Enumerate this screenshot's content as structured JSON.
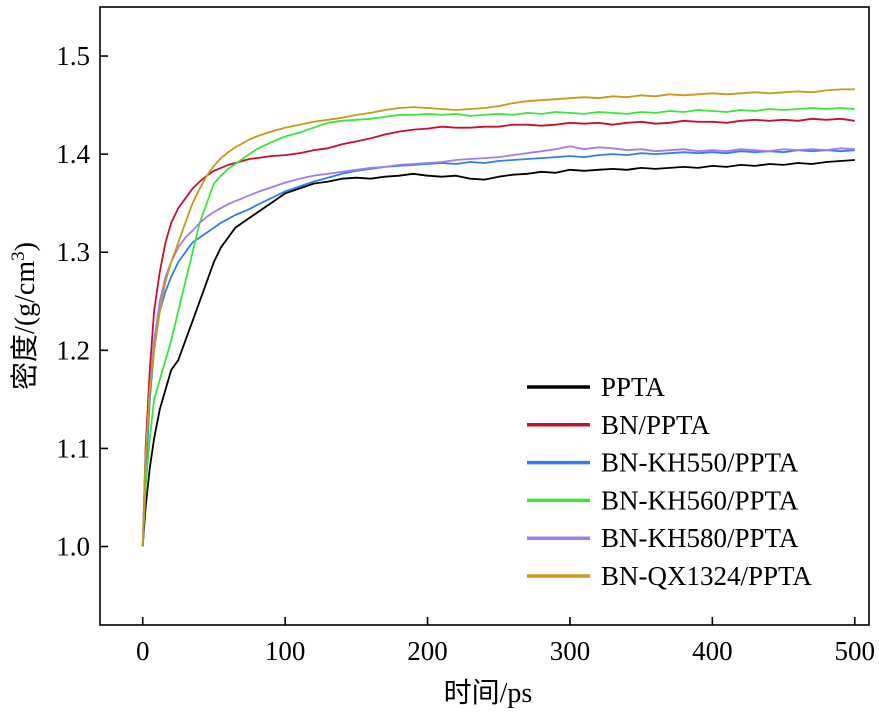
{
  "chart_data": {
    "type": "line",
    "xlabel": "时间/ps",
    "ylabel": "密度/(g/cm",
    "ylabel_superscript": "3",
    "ylabel_close": ")",
    "xlim": [
      -30,
      510
    ],
    "ylim": [
      0.92,
      1.55
    ],
    "xticks": [
      0,
      100,
      200,
      300,
      400,
      500
    ],
    "yticks": [
      1.0,
      1.1,
      1.2,
      1.3,
      1.4,
      1.5
    ],
    "ytick_labels": [
      "1.0",
      "1.1",
      "1.2",
      "1.3",
      "1.4",
      "1.5"
    ],
    "grid": false,
    "legend_position": "bottom-right",
    "series": [
      {
        "name": "PPTA",
        "color": "#000000",
        "x": [
          0,
          2,
          5,
          8,
          12,
          16,
          20,
          25,
          30,
          35,
          40,
          45,
          50,
          55,
          60,
          65,
          70,
          75,
          80,
          90,
          100,
          110,
          120,
          130,
          140,
          150,
          160,
          170,
          180,
          190,
          200,
          210,
          220,
          230,
          240,
          250,
          260,
          270,
          280,
          290,
          300,
          310,
          320,
          330,
          340,
          350,
          360,
          370,
          380,
          390,
          400,
          410,
          420,
          430,
          440,
          450,
          460,
          470,
          480,
          490,
          500
        ],
        "y": [
          1.0,
          1.04,
          1.08,
          1.11,
          1.14,
          1.16,
          1.18,
          1.19,
          1.21,
          1.23,
          1.25,
          1.27,
          1.29,
          1.305,
          1.315,
          1.325,
          1.33,
          1.335,
          1.34,
          1.35,
          1.36,
          1.365,
          1.37,
          1.372,
          1.375,
          1.376,
          1.375,
          1.377,
          1.378,
          1.38,
          1.378,
          1.377,
          1.378,
          1.375,
          1.374,
          1.377,
          1.379,
          1.38,
          1.382,
          1.381,
          1.384,
          1.383,
          1.384,
          1.385,
          1.384,
          1.386,
          1.385,
          1.386,
          1.387,
          1.386,
          1.388,
          1.387,
          1.389,
          1.388,
          1.39,
          1.389,
          1.391,
          1.39,
          1.392,
          1.393,
          1.394
        ]
      },
      {
        "name": "BN/PPTA",
        "color": "#c8102e",
        "x": [
          0,
          2,
          5,
          8,
          12,
          16,
          20,
          25,
          30,
          35,
          40,
          45,
          50,
          55,
          60,
          65,
          70,
          75,
          80,
          90,
          100,
          110,
          120,
          130,
          140,
          150,
          160,
          170,
          180,
          190,
          200,
          210,
          220,
          230,
          240,
          250,
          260,
          270,
          280,
          290,
          300,
          310,
          320,
          330,
          340,
          350,
          360,
          370,
          380,
          390,
          400,
          410,
          420,
          430,
          440,
          450,
          460,
          470,
          480,
          490,
          500
        ],
        "y": [
          1.0,
          1.1,
          1.18,
          1.24,
          1.28,
          1.31,
          1.33,
          1.345,
          1.355,
          1.365,
          1.372,
          1.378,
          1.383,
          1.386,
          1.389,
          1.391,
          1.393,
          1.395,
          1.396,
          1.398,
          1.399,
          1.401,
          1.404,
          1.406,
          1.41,
          1.413,
          1.416,
          1.42,
          1.423,
          1.425,
          1.426,
          1.428,
          1.427,
          1.427,
          1.428,
          1.428,
          1.43,
          1.43,
          1.429,
          1.43,
          1.432,
          1.431,
          1.432,
          1.43,
          1.432,
          1.433,
          1.431,
          1.432,
          1.434,
          1.433,
          1.433,
          1.432,
          1.434,
          1.435,
          1.434,
          1.435,
          1.434,
          1.436,
          1.435,
          1.436,
          1.434
        ]
      },
      {
        "name": "BN-KH550/PPTA",
        "color": "#2f80ed",
        "x": [
          0,
          2,
          5,
          8,
          12,
          16,
          20,
          25,
          30,
          35,
          40,
          45,
          50,
          55,
          60,
          65,
          70,
          75,
          80,
          90,
          100,
          110,
          120,
          130,
          140,
          150,
          160,
          170,
          180,
          190,
          200,
          210,
          220,
          230,
          240,
          250,
          260,
          270,
          280,
          290,
          300,
          310,
          320,
          330,
          340,
          350,
          360,
          370,
          380,
          390,
          400,
          410,
          420,
          430,
          440,
          450,
          460,
          470,
          480,
          490,
          500
        ],
        "y": [
          1.0,
          1.07,
          1.15,
          1.2,
          1.24,
          1.26,
          1.275,
          1.29,
          1.3,
          1.31,
          1.315,
          1.32,
          1.325,
          1.33,
          1.334,
          1.338,
          1.341,
          1.344,
          1.348,
          1.355,
          1.362,
          1.367,
          1.372,
          1.376,
          1.38,
          1.383,
          1.385,
          1.387,
          1.388,
          1.389,
          1.39,
          1.391,
          1.39,
          1.392,
          1.391,
          1.393,
          1.394,
          1.395,
          1.396,
          1.397,
          1.398,
          1.397,
          1.399,
          1.4,
          1.399,
          1.401,
          1.4,
          1.401,
          1.402,
          1.401,
          1.402,
          1.401,
          1.403,
          1.402,
          1.403,
          1.402,
          1.404,
          1.403,
          1.404,
          1.403,
          1.404
        ]
      },
      {
        "name": "BN-KH560/PPTA",
        "color": "#39e639",
        "x": [
          0,
          2,
          5,
          8,
          12,
          16,
          20,
          25,
          30,
          35,
          40,
          45,
          50,
          55,
          60,
          65,
          70,
          75,
          80,
          90,
          100,
          110,
          120,
          130,
          140,
          150,
          160,
          170,
          180,
          190,
          200,
          210,
          220,
          230,
          240,
          250,
          260,
          270,
          280,
          290,
          300,
          310,
          320,
          330,
          340,
          350,
          360,
          370,
          380,
          390,
          400,
          410,
          420,
          430,
          440,
          450,
          460,
          470,
          480,
          490,
          500
        ],
        "y": [
          1.0,
          1.06,
          1.11,
          1.15,
          1.17,
          1.19,
          1.21,
          1.24,
          1.27,
          1.3,
          1.33,
          1.35,
          1.37,
          1.378,
          1.385,
          1.39,
          1.395,
          1.4,
          1.405,
          1.412,
          1.418,
          1.422,
          1.427,
          1.432,
          1.434,
          1.435,
          1.436,
          1.438,
          1.44,
          1.44,
          1.441,
          1.44,
          1.441,
          1.439,
          1.44,
          1.441,
          1.44,
          1.442,
          1.441,
          1.443,
          1.442,
          1.441,
          1.443,
          1.442,
          1.441,
          1.443,
          1.442,
          1.444,
          1.443,
          1.445,
          1.444,
          1.443,
          1.445,
          1.444,
          1.446,
          1.445,
          1.446,
          1.447,
          1.446,
          1.447,
          1.446
        ]
      },
      {
        "name": "BN-KH580/PPTA",
        "color": "#a07cf0",
        "x": [
          0,
          2,
          5,
          8,
          12,
          16,
          20,
          25,
          30,
          35,
          40,
          45,
          50,
          55,
          60,
          65,
          70,
          75,
          80,
          90,
          100,
          110,
          120,
          130,
          140,
          150,
          160,
          170,
          180,
          190,
          200,
          210,
          220,
          230,
          240,
          250,
          260,
          270,
          280,
          290,
          300,
          310,
          320,
          330,
          340,
          350,
          360,
          370,
          380,
          390,
          400,
          410,
          420,
          430,
          440,
          450,
          460,
          470,
          480,
          490,
          500
        ],
        "y": [
          1.0,
          1.09,
          1.16,
          1.21,
          1.25,
          1.275,
          1.29,
          1.305,
          1.315,
          1.322,
          1.33,
          1.336,
          1.341,
          1.345,
          1.349,
          1.352,
          1.355,
          1.358,
          1.361,
          1.366,
          1.371,
          1.375,
          1.378,
          1.38,
          1.382,
          1.384,
          1.386,
          1.387,
          1.389,
          1.39,
          1.391,
          1.392,
          1.394,
          1.395,
          1.396,
          1.397,
          1.399,
          1.401,
          1.403,
          1.405,
          1.408,
          1.405,
          1.407,
          1.406,
          1.404,
          1.405,
          1.403,
          1.404,
          1.405,
          1.403,
          1.404,
          1.403,
          1.405,
          1.404,
          1.403,
          1.405,
          1.404,
          1.405,
          1.404,
          1.406,
          1.405
        ]
      },
      {
        "name": "BN-QX1324/PPTA",
        "color": "#c89a1a",
        "x": [
          0,
          2,
          5,
          8,
          12,
          16,
          20,
          25,
          30,
          35,
          40,
          45,
          50,
          55,
          60,
          65,
          70,
          75,
          80,
          90,
          100,
          110,
          120,
          130,
          140,
          150,
          160,
          170,
          180,
          190,
          200,
          210,
          220,
          230,
          240,
          250,
          260,
          270,
          280,
          290,
          300,
          310,
          320,
          330,
          340,
          350,
          360,
          370,
          380,
          390,
          400,
          410,
          420,
          430,
          440,
          450,
          460,
          470,
          480,
          490,
          500
        ],
        "y": [
          1.0,
          1.09,
          1.16,
          1.2,
          1.24,
          1.27,
          1.29,
          1.31,
          1.33,
          1.35,
          1.365,
          1.378,
          1.388,
          1.396,
          1.402,
          1.407,
          1.411,
          1.415,
          1.418,
          1.423,
          1.427,
          1.43,
          1.433,
          1.435,
          1.437,
          1.44,
          1.442,
          1.445,
          1.447,
          1.448,
          1.447,
          1.446,
          1.445,
          1.446,
          1.447,
          1.449,
          1.452,
          1.454,
          1.455,
          1.456,
          1.457,
          1.458,
          1.457,
          1.459,
          1.458,
          1.46,
          1.459,
          1.461,
          1.46,
          1.461,
          1.462,
          1.461,
          1.462,
          1.463,
          1.462,
          1.463,
          1.464,
          1.463,
          1.465,
          1.466,
          1.466
        ]
      }
    ]
  }
}
